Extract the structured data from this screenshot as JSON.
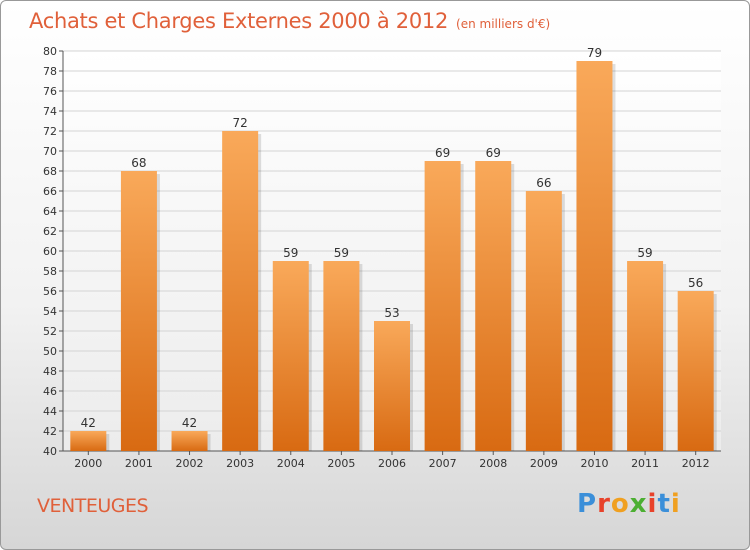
{
  "header": {
    "title": "Achats et Charges Externes 2000 à 2012",
    "unit": "(en milliers d'€)"
  },
  "footer": {
    "commune": "VENTEUGES",
    "logo_text": "Proxiti"
  },
  "colors": {
    "title": "#e0603a",
    "bar_top": "#f9a95a",
    "bar_bottom": "#d86a12",
    "logo_letters": [
      "#3b8fd9",
      "#e8422a",
      "#f0a020",
      "#4caf32",
      "#e8422a",
      "#3b8fd9",
      "#f0a020"
    ]
  },
  "chart_data": {
    "type": "bar",
    "categories": [
      "2000",
      "2001",
      "2002",
      "2003",
      "2004",
      "2005",
      "2006",
      "2007",
      "2008",
      "2009",
      "2010",
      "2011",
      "2012"
    ],
    "values": [
      42,
      68,
      42,
      72,
      59,
      59,
      53,
      69,
      69,
      66,
      79,
      59,
      56
    ],
    "ylim": [
      40,
      80
    ],
    "ytick_step": 2,
    "grid": true,
    "data_labels": true
  }
}
